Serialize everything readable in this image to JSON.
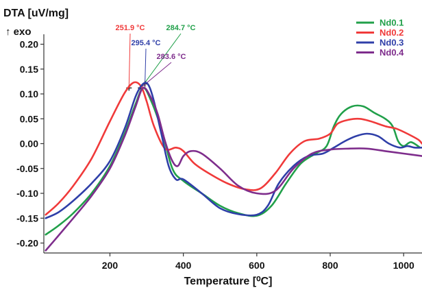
{
  "chart_data": {
    "type": "line",
    "ylabel": "DTA [uV/mg]",
    "ylabel_note": "↑ exo",
    "xlabel": "Temperature [⁰C]",
    "xlim": [
      20,
      1050
    ],
    "ylim": [
      -0.22,
      0.22
    ],
    "x_ticks": [
      200,
      400,
      600,
      800,
      1000
    ],
    "x_tick_labels": [
      "200",
      "400",
      "600",
      "800",
      "1000"
    ],
    "y_ticks": [
      0.2,
      0.15,
      0.1,
      0.05,
      0.0,
      -0.05,
      -0.1,
      -0.15,
      -0.2
    ],
    "y_tick_labels": [
      "0.20",
      "0.15",
      "0.10",
      "0.05",
      "0.00",
      "-0.05",
      "-0.10",
      "-0.15",
      "-0.20"
    ],
    "grid": false,
    "legend_position": "top-right",
    "series": [
      {
        "name": "Nd0.1",
        "color": "#21a04a",
        "x": [
          25,
          60,
          100,
          150,
          200,
          240,
          270,
          290,
          310,
          340,
          370,
          400,
          450,
          500,
          550,
          600,
          640,
          680,
          720,
          760,
          790,
          810,
          830,
          860,
          890,
          920,
          950,
          970,
          985,
          1000,
          1020,
          1045
        ],
        "y": [
          -0.183,
          -0.165,
          -0.14,
          -0.1,
          -0.045,
          0.02,
          0.08,
          0.112,
          0.09,
          0.03,
          -0.05,
          -0.075,
          -0.1,
          -0.125,
          -0.14,
          -0.145,
          -0.125,
          -0.08,
          -0.04,
          -0.02,
          -0.005,
          0.035,
          0.06,
          0.075,
          0.075,
          0.062,
          0.05,
          0.035,
          0.005,
          -0.005,
          0.003,
          -0.008
        ]
      },
      {
        "name": "Nd0.2",
        "color": "#f03a3a",
        "x": [
          25,
          60,
          100,
          150,
          200,
          240,
          265,
          285,
          300,
          320,
          350,
          380,
          400,
          430,
          470,
          520,
          570,
          610,
          650,
          690,
          730,
          770,
          800,
          820,
          850,
          880,
          910,
          950,
          980,
          1010,
          1040,
          1050
        ],
        "y": [
          -0.143,
          -0.12,
          -0.085,
          -0.03,
          0.045,
          0.102,
          0.123,
          0.115,
          0.085,
          0.035,
          -0.01,
          -0.008,
          -0.015,
          -0.04,
          -0.06,
          -0.08,
          -0.092,
          -0.09,
          -0.06,
          -0.02,
          0.005,
          0.01,
          0.02,
          0.04,
          0.048,
          0.05,
          0.045,
          0.035,
          0.03,
          0.02,
          0.008,
          0.0
        ]
      },
      {
        "name": "Nd0.3",
        "color": "#2f3fa8",
        "x": [
          25,
          60,
          100,
          150,
          200,
          240,
          270,
          290,
          305,
          320,
          340,
          360,
          380,
          400,
          450,
          500,
          550,
          600,
          630,
          660,
          700,
          740,
          780,
          810,
          840,
          870,
          900,
          930,
          960,
          990,
          1010,
          1030,
          1050
        ],
        "y": [
          -0.15,
          -0.138,
          -0.115,
          -0.08,
          -0.035,
          0.03,
          0.095,
          0.12,
          0.118,
          0.085,
          0.02,
          -0.045,
          -0.072,
          -0.072,
          -0.1,
          -0.13,
          -0.142,
          -0.143,
          -0.125,
          -0.08,
          -0.045,
          -0.025,
          -0.02,
          -0.008,
          0.005,
          0.015,
          0.02,
          0.015,
          0.0,
          -0.008,
          -0.005,
          -0.008,
          -0.008
        ]
      },
      {
        "name": "Nd0.4",
        "color": "#7e2d8c",
        "x": [
          25,
          60,
          100,
          150,
          200,
          240,
          270,
          290,
          310,
          330,
          350,
          370,
          385,
          400,
          420,
          450,
          500,
          550,
          600,
          650,
          700,
          750,
          800,
          850,
          900,
          950,
          1000,
          1050
        ],
        "y": [
          -0.215,
          -0.185,
          -0.15,
          -0.105,
          -0.05,
          0.015,
          0.075,
          0.112,
          0.095,
          0.06,
          0.005,
          -0.035,
          -0.045,
          -0.025,
          -0.015,
          -0.02,
          -0.05,
          -0.085,
          -0.1,
          -0.095,
          -0.05,
          -0.02,
          -0.012,
          -0.01,
          -0.01,
          -0.015,
          -0.02,
          -0.025
        ]
      }
    ],
    "annotations": [
      {
        "text": "251.9 °C",
        "color": "#f03a3a",
        "x": 251.9,
        "y": 0.112
      },
      {
        "text": "295.4 °C",
        "color": "#2f3fa8",
        "x": 295.4,
        "y": 0.12
      },
      {
        "text": "284.7 °C",
        "color": "#21a04a",
        "x": 284.7,
        "y": 0.112
      },
      {
        "text": "283.6 °C",
        "color": "#7e2d8c",
        "x": 283.6,
        "y": 0.112
      }
    ]
  }
}
